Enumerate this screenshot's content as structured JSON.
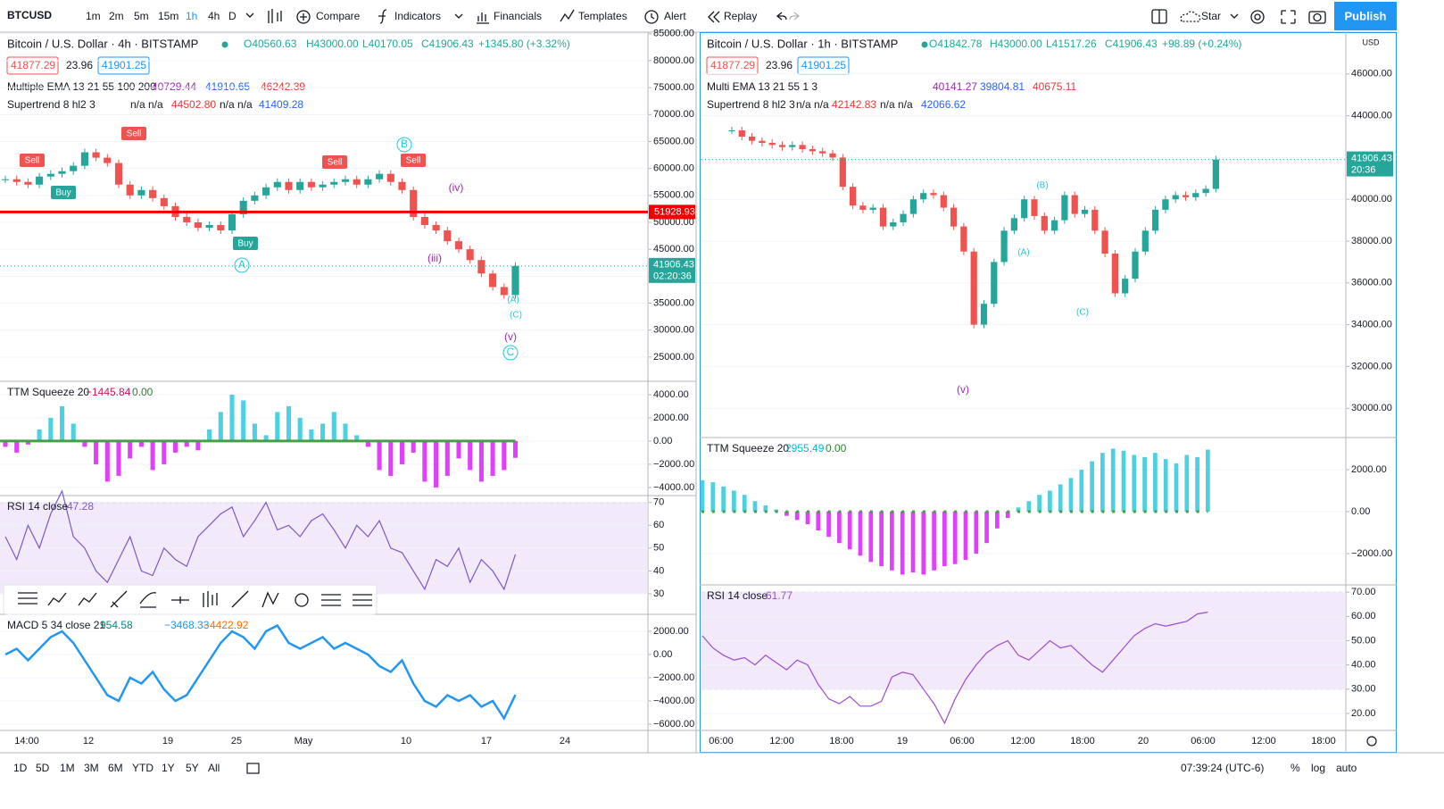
{
  "toolbar": {
    "symbol": "BTCUSD",
    "intervals": [
      "1m",
      "2m",
      "5m",
      "15m",
      "1h",
      "4h",
      "D"
    ],
    "compare": "Compare",
    "indicators": "Indicators",
    "financials": "Financials",
    "templates": "Templates",
    "alert": "Alert",
    "replay": "Replay",
    "star": "Star",
    "publish": "Publish"
  },
  "left": {
    "legend": {
      "title": "Bitcoin / U.S. Dollar · 4h · BITSTAMP",
      "o": "O40560.63",
      "h": "H43000.00",
      "l": "L40170.05",
      "c": "C41906.43",
      "change": "+1345.80 (+3.32%)",
      "bid": "41877.29",
      "spread": "23.96",
      "ask": "41901.25",
      "ema_name": "Multiple EMA 13 21 55 100 200",
      "ema_values": [
        "40729.44",
        "41910.65",
        "46242.39"
      ],
      "st_name": "Supertrend 8 hl2 3",
      "st_values": [
        "n/a n/a",
        "44502.80",
        "n/a n/a",
        "41409.28"
      ]
    },
    "price": {
      "type": "candlestick",
      "up_color": "#26a69a",
      "down_color": "#ef5350",
      "ylim": [
        20500,
        85300
      ],
      "yticks": [
        {
          "value": 85000,
          "label": "85000.00"
        },
        {
          "value": 80000,
          "label": "80000.00"
        },
        {
          "value": 75000,
          "label": "75000.00"
        },
        {
          "value": 70000,
          "label": "70000.00"
        },
        {
          "value": 65000,
          "label": "65000.00"
        },
        {
          "value": 60000,
          "label": "60000.00"
        },
        {
          "value": 55000,
          "label": "55000.00"
        },
        {
          "value": 50000,
          "label": "50000.00"
        },
        {
          "value": 45000,
          "label": "45000.00"
        },
        {
          "value": 40000,
          "label": "40000.00"
        },
        {
          "value": 35000,
          "label": "35000.00"
        },
        {
          "value": 30000,
          "label": "30000.00"
        },
        {
          "value": 25000,
          "label": "25000.00"
        }
      ],
      "values": [
        58000,
        57500,
        57000,
        58500,
        59000,
        59500,
        60500,
        63000,
        62000,
        61000,
        57000,
        55000,
        56000,
        54500,
        53000,
        51000,
        50000,
        49000,
        49500,
        48500,
        51500,
        54000,
        55000,
        56500,
        57500,
        56000,
        57500,
        56500,
        57000,
        57500,
        58000,
        57000,
        58000,
        59000,
        57500,
        56000,
        51000,
        49500,
        48500,
        46500,
        45000,
        43000,
        40500,
        38000,
        36500,
        41906.43
      ],
      "level": 51928.93,
      "level_color": "#f00000",
      "last": 41906.43,
      "countdown": "02:20:36"
    },
    "annotations": [
      "Sell",
      "Sell",
      "Sell",
      "Sell",
      "Buy",
      "Buy",
      "A",
      "B",
      "C",
      "(iii)",
      "(iv)",
      "(v)",
      "(A)",
      "(C)"
    ],
    "ttm": {
      "type": "histogram",
      "name": "TTM Squeeze 20",
      "value_text": "−1445.84",
      "zero_text": "0.00",
      "up_color": "#4dd0e1",
      "down_color": "#e040fb",
      "ylim": [
        -4700,
        5150
      ],
      "yticks": [
        {
          "value": 4000,
          "label": "4000.00"
        },
        {
          "value": 2000,
          "label": "2000.00"
        },
        {
          "value": 0,
          "label": "0.00"
        },
        {
          "value": -2000,
          "label": "−2000.00"
        },
        {
          "value": -4000,
          "label": "−4000.00"
        }
      ],
      "values": [
        -500,
        -1000,
        -300,
        1000,
        2000,
        3000,
        1500,
        -500,
        -2000,
        -3500,
        -3000,
        -1500,
        -500,
        -2500,
        -2000,
        -1000,
        -500,
        -800,
        1000,
        2500,
        4000,
        3500,
        1500,
        500,
        2500,
        3000,
        2000,
        1000,
        1500,
        2500,
        1500,
        500,
        -500,
        -2500,
        -3000,
        -2000,
        -1000,
        -3500,
        -4000,
        -3000,
        -1500,
        -2500,
        -3500,
        -3000,
        -2500,
        -1445.84
      ]
    },
    "rsi": {
      "type": "line",
      "name": "RSI 14 close",
      "value_text": "47.28",
      "color": "#7e57c2",
      "ylim": [
        21,
        73
      ],
      "band": [
        30,
        70
      ],
      "yticks": [
        70,
        60,
        50,
        40,
        30
      ],
      "values": [
        55,
        45,
        60,
        50,
        65,
        75,
        55,
        50,
        40,
        35,
        45,
        55,
        40,
        38,
        50,
        45,
        42,
        55,
        60,
        65,
        68,
        55,
        62,
        70,
        58,
        60,
        55,
        62,
        65,
        58,
        50,
        60,
        55,
        62,
        50,
        48,
        40,
        32,
        45,
        42,
        50,
        35,
        45,
        40,
        32,
        47.28
      ]
    },
    "macd": {
      "type": "line",
      "name": "MACD 5 34 close 21",
      "value_texts": [
        "954.58",
        "−3468.33",
        "−4422.92"
      ],
      "color": "#2196f3",
      "ylim": [
        -6540,
        3460
      ],
      "yticks": [
        {
          "value": 2000,
          "label": "2000.00"
        },
        {
          "value": 0,
          "label": "0.00"
        },
        {
          "value": -2000,
          "label": "−2000.00"
        },
        {
          "value": -4000,
          "label": "−4000.00"
        },
        {
          "value": -6000,
          "label": "−6000.00"
        }
      ],
      "values": [
        0,
        500,
        -500,
        500,
        1500,
        2000,
        1000,
        -500,
        -2000,
        -3500,
        -4000,
        -2000,
        -2500,
        -1500,
        -3000,
        -4000,
        -3500,
        -2000,
        -500,
        1000,
        2000,
        1500,
        500,
        2000,
        2500,
        1000,
        500,
        1000,
        1500,
        500,
        1000,
        500,
        0,
        -1000,
        -1500,
        -500,
        -2500,
        -4000,
        -4500,
        -3500,
        -4000,
        -3500,
        -4500,
        -4000,
        -5500,
        -3468.33
      ]
    },
    "time_axis": [
      "14:00",
      "12",
      "19",
      "25",
      "May",
      "10",
      "17",
      "24"
    ]
  },
  "right": {
    "legend": {
      "title": "Bitcoin / U.S. Dollar · 1h · BITSTAMP",
      "o": "O41842.78",
      "h": "H43000.00",
      "l": "L41517.26",
      "c": "C41906.43",
      "change": "+98.89 (+0.24%)",
      "bid": "41877.29",
      "spread": "23.96",
      "ask": "41901.25",
      "ema_name": "Multi EMA 13 21 55 1 3",
      "ema_values": [
        "40141.27",
        "39804.81",
        "40675.11"
      ],
      "st_name": "Supertrend 8 hl2 3",
      "st_values": [
        "n/a n/a",
        "42142.83",
        "n/a n/a",
        "42066.62"
      ]
    },
    "currency": "USD",
    "price": {
      "type": "candlestick",
      "up_color": "#26a69a",
      "down_color": "#ef5350",
      "ylim": [
        28600,
        48000
      ],
      "yticks": [
        {
          "value": 46000,
          "label": "46000.00"
        },
        {
          "value": 44000,
          "label": "44000.00"
        },
        {
          "value": 42000,
          "label": "42000.00"
        },
        {
          "value": 40000,
          "label": "40000.00"
        },
        {
          "value": 38000,
          "label": "38000.00"
        },
        {
          "value": 36000,
          "label": "36000.00"
        },
        {
          "value": 34000,
          "label": "34000.00"
        },
        {
          "value": 32000,
          "label": "32000.00"
        },
        {
          "value": 30000,
          "label": "30000.00"
        }
      ],
      "values": [
        43300,
        43000,
        42800,
        42700,
        42600,
        42500,
        42600,
        42400,
        42300,
        42200,
        42000,
        40600,
        39700,
        39500,
        39600,
        38700,
        38900,
        39300,
        40000,
        40300,
        40200,
        39600,
        38700,
        37500,
        34000,
        35000,
        37000,
        38500,
        39100,
        40000,
        39200,
        38500,
        39000,
        40200,
        39300,
        39500,
        38500,
        37400,
        35500,
        36200,
        37500,
        38500,
        39500,
        40000,
        40200,
        40100,
        40300,
        40500,
        41906.43
      ],
      "last": 41906.43,
      "countdown": "20:36"
    },
    "annotations": [
      "(B)",
      "(A)",
      "(C)",
      "(v)"
    ],
    "ttm": {
      "type": "histogram",
      "name": "TTM Squeeze 20",
      "value_text": "2955.49",
      "zero_text": "0.00",
      "up_color": "#4dd0e1",
      "down_color": "#e040fb",
      "ylim": [
        -3490,
        3530
      ],
      "yticks": [
        {
          "value": 2000,
          "label": "2000.00"
        },
        {
          "value": 0,
          "label": "0.00"
        },
        {
          "value": -2000,
          "label": "−2000.00"
        }
      ],
      "values": [
        1500,
        1400,
        1200,
        1000,
        800,
        500,
        300,
        100,
        -200,
        -400,
        -600,
        -900,
        -1200,
        -1500,
        -1800,
        -2100,
        -2400,
        -2600,
        -2800,
        -3000,
        -2900,
        -3000,
        -2800,
        -2600,
        -2500,
        -2300,
        -2000,
        -1500,
        -800,
        -300,
        200,
        500,
        800,
        1000,
        1300,
        1600,
        2000,
        2400,
        2800,
        3000,
        2900,
        2700,
        2600,
        2800,
        2500,
        2300,
        2700,
        2600,
        2955.49
      ]
    },
    "rsi": {
      "type": "line",
      "name": "RSI 14 close",
      "value_text": "61.77",
      "color": "#9c4dcc",
      "ylim": [
        13,
        73
      ],
      "band": [
        30,
        70
      ],
      "yticks": [
        {
          "value": 70,
          "label": "70.00"
        },
        {
          "value": 60,
          "label": "60.00"
        },
        {
          "value": 50,
          "label": "50.00"
        },
        {
          "value": 40,
          "label": "40.00"
        },
        {
          "value": 30,
          "label": "30.00"
        },
        {
          "value": 20,
          "label": "20.00"
        }
      ],
      "values": [
        52,
        47,
        44,
        42,
        43,
        40,
        44,
        41,
        38,
        42,
        40,
        32,
        26,
        24,
        27,
        23,
        23,
        25,
        35,
        37,
        36,
        30,
        24,
        16,
        26,
        34,
        40,
        45,
        48,
        50,
        44,
        42,
        46,
        50,
        47,
        48,
        44,
        40,
        37,
        42,
        47,
        52,
        55,
        57,
        56,
        57,
        58,
        61,
        61.77
      ]
    },
    "time_axis": [
      "06:00",
      "12:00",
      "18:00",
      "19",
      "06:00",
      "12:00",
      "18:00",
      "20",
      "06:00",
      "12:00",
      "18:00"
    ]
  },
  "footer": {
    "ranges": [
      "1D",
      "5D",
      "1M",
      "3M",
      "6M",
      "YTD",
      "1Y",
      "5Y",
      "All"
    ],
    "clock": "07:39:24 (UTC-6)",
    "percent": "%",
    "log": "log",
    "auto": "auto"
  }
}
